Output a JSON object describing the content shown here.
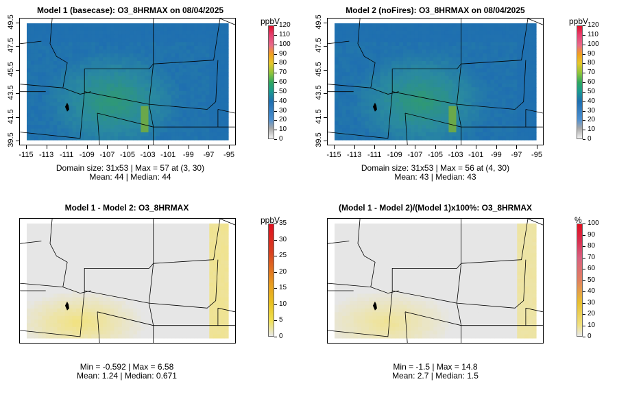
{
  "panels": [
    {
      "title": "Model 1 (basecase): O3_8HRMAX on 08/04/2025",
      "kind": "abs",
      "ylabels": [
        "49.5",
        "47.5",
        "45.5",
        "43.5",
        "41.5",
        "39.5"
      ],
      "xlabels": [
        "-115",
        "-113",
        "-111",
        "-109",
        "-107",
        "-105",
        "-103",
        "-101",
        "-99",
        "-97",
        "-95"
      ],
      "stats_line1": "Domain size: 31x53 | Max = 57 at (3, 30)",
      "stats_line2": "Mean: 44 |  Median: 44",
      "colorbar": {
        "unit": "ppbV",
        "labels": [
          "120",
          "110",
          "100",
          "90",
          "80",
          "70",
          "60",
          "50",
          "40",
          "30",
          "20",
          "10",
          "0"
        ],
        "max_value": 120
      }
    },
    {
      "title": "Model 2 (noFires): O3_8HRMAX on 08/04/2025",
      "kind": "abs",
      "ylabels": [
        "49.5",
        "47.5",
        "45.5",
        "43.5",
        "41.5",
        "39.5"
      ],
      "xlabels": [
        "-115",
        "-113",
        "-111",
        "-109",
        "-107",
        "-105",
        "-103",
        "-101",
        "-99",
        "-97",
        "-95"
      ],
      "stats_line1": "Domain size: 31x53 | Max = 56 at (4, 30)",
      "stats_line2": "Mean: 43 |  Median: 43",
      "colorbar": {
        "unit": "ppbV",
        "labels": [
          "120",
          "110",
          "100",
          "90",
          "80",
          "70",
          "60",
          "50",
          "40",
          "30",
          "20",
          "10",
          "0"
        ],
        "max_value": 120
      }
    },
    {
      "title": "Model 1 - Model 2: O3_8HRMAX",
      "kind": "diff",
      "stats_line1": "Min = -0.592 | Max = 6.58",
      "stats_line2": "Mean: 1.24 |  Median: 0.671",
      "colorbar": {
        "unit": "ppbV",
        "labels": [
          "35",
          "30",
          "25",
          "20",
          "15",
          "10",
          "5",
          "0"
        ],
        "max_value": 35
      }
    },
    {
      "title": "(Model 1 - Model 2)/(Model 1)x100%: O3_8HRMAX",
      "kind": "diff",
      "stats_line1": "Min = -1.5 | Max = 14.8",
      "stats_line2": "Mean: 2.7 |  Median: 1.5",
      "colorbar": {
        "unit": "%",
        "labels": [
          "100",
          "90",
          "80",
          "70",
          "60",
          "50",
          "40",
          "30",
          "20",
          "10",
          "0"
        ],
        "max_value": 100
      }
    }
  ],
  "colors": {
    "abs_field_dark": "#1f6fb0",
    "abs_field_mid": "#2a8aa0",
    "abs_field_green": "#2f9a72",
    "diff_field_base": "#e6e6e6",
    "diff_field_yellow": "#f2e27a",
    "boundary": "#000000"
  }
}
